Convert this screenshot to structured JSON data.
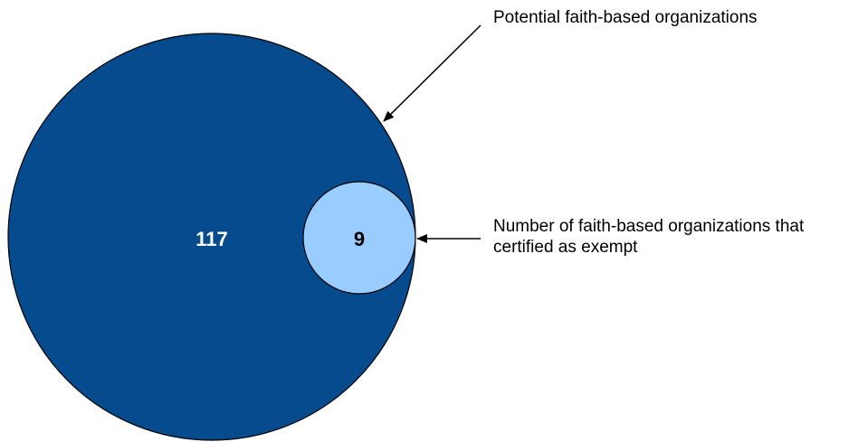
{
  "diagram": {
    "outer": {
      "value": "117",
      "label": "Potential faith-based organizations",
      "fill": "#064B8E"
    },
    "inner": {
      "value": "9",
      "label": "Number of faith-based organizations that certified as exempt",
      "fill": "#99CCFF"
    },
    "outline_color": "#000000",
    "value_text_color_outer": "#FFFFFF",
    "value_text_color_inner": "#000000"
  }
}
